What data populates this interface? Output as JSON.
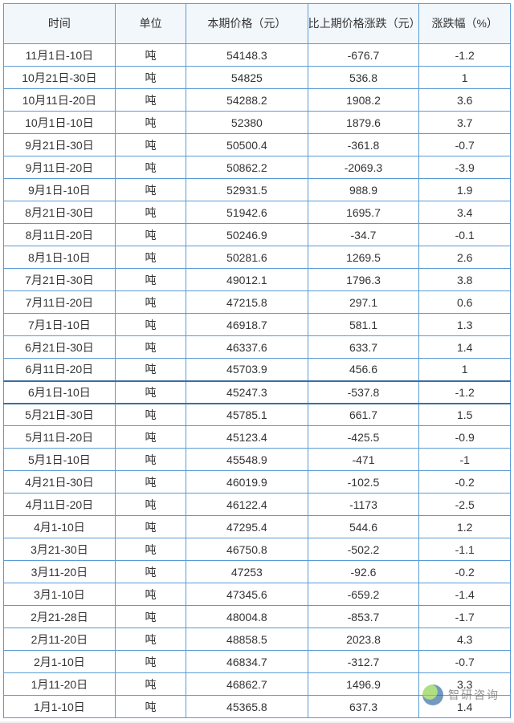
{
  "table": {
    "columns": [
      "时间",
      "单位",
      "本期价格（元）",
      "比上期价格涨跌（元）",
      "涨跌幅（%）"
    ],
    "col_widths": [
      "22%",
      "14%",
      "24%",
      "22%",
      "18%"
    ],
    "header_bg": "#f2f7fc",
    "border_color": "#5b9bd5",
    "text_color": "#333",
    "font_size": 14,
    "highlight_row_index": 15,
    "highlight_border_color": "#3a6ea5",
    "rows": [
      [
        "11月1日-10日",
        "吨",
        "54148.3",
        "-676.7",
        "-1.2"
      ],
      [
        "10月21日-30日",
        "吨",
        "54825",
        "536.8",
        "1"
      ],
      [
        "10月11日-20日",
        "吨",
        "54288.2",
        "1908.2",
        "3.6"
      ],
      [
        "10月1日-10日",
        "吨",
        "52380",
        "1879.6",
        "3.7"
      ],
      [
        "9月21日-30日",
        "吨",
        "50500.4",
        "-361.8",
        "-0.7"
      ],
      [
        "9月11日-20日",
        "吨",
        "50862.2",
        "-2069.3",
        "-3.9"
      ],
      [
        "9月1日-10日",
        "吨",
        "52931.5",
        "988.9",
        "1.9"
      ],
      [
        "8月21日-30日",
        "吨",
        "51942.6",
        "1695.7",
        "3.4"
      ],
      [
        "8月11日-20日",
        "吨",
        "50246.9",
        "-34.7",
        "-0.1"
      ],
      [
        "8月1日-10日",
        "吨",
        "50281.6",
        "1269.5",
        "2.6"
      ],
      [
        "7月21日-30日",
        "吨",
        "49012.1",
        "1796.3",
        "3.8"
      ],
      [
        "7月11日-20日",
        "吨",
        "47215.8",
        "297.1",
        "0.6"
      ],
      [
        "7月1日-10日",
        "吨",
        "46918.7",
        "581.1",
        "1.3"
      ],
      [
        "6月21日-30日",
        "吨",
        "46337.6",
        "633.7",
        "1.4"
      ],
      [
        "6月11日-20日",
        "吨",
        "45703.9",
        "456.6",
        "1"
      ],
      [
        "6月1日-10日",
        "吨",
        "45247.3",
        "-537.8",
        "-1.2"
      ],
      [
        "5月21日-30日",
        "吨",
        "45785.1",
        "661.7",
        "1.5"
      ],
      [
        "5月11日-20日",
        "吨",
        "45123.4",
        "-425.5",
        "-0.9"
      ],
      [
        "5月1日-10日",
        "吨",
        "45548.9",
        "-471",
        "-1"
      ],
      [
        "4月21日-30日",
        "吨",
        "46019.9",
        "-102.5",
        "-0.2"
      ],
      [
        "4月11日-20日",
        "吨",
        "46122.4",
        "-1173",
        "-2.5"
      ],
      [
        "4月1-10日",
        "吨",
        "47295.4",
        "544.6",
        "1.2"
      ],
      [
        "3月21-30日",
        "吨",
        "46750.8",
        "-502.2",
        "-1.1"
      ],
      [
        "3月11-20日",
        "吨",
        "47253",
        "-92.6",
        "-0.2"
      ],
      [
        "3月1-10日",
        "吨",
        "47345.6",
        "-659.2",
        "-1.4"
      ],
      [
        "2月21-28日",
        "吨",
        "48004.8",
        "-853.7",
        "-1.7"
      ],
      [
        "2月11-20日",
        "吨",
        "48858.5",
        "2023.8",
        "4.3"
      ],
      [
        "2月1-10日",
        "吨",
        "46834.7",
        "-312.7",
        "-0.7"
      ],
      [
        "1月11-20日",
        "吨",
        "46862.7",
        "1496.9",
        "3.3"
      ],
      [
        "1月1-10日",
        "吨",
        "45365.8",
        "637.3",
        "1.4"
      ]
    ]
  },
  "watermark": {
    "label": "智研咨询"
  }
}
